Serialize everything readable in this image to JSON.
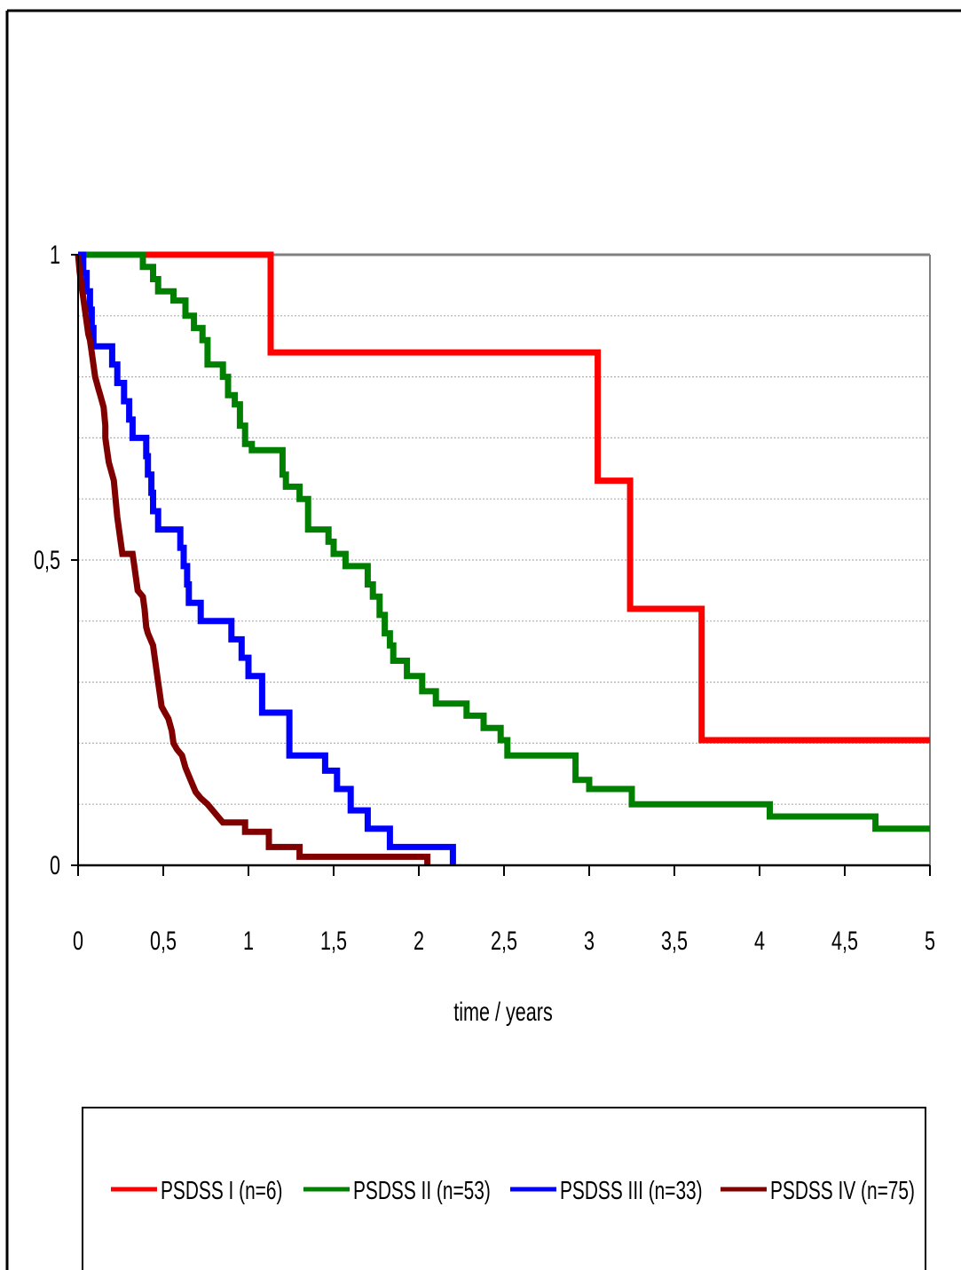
{
  "chart_data": {
    "type": "line",
    "step": true,
    "title": "",
    "xlabel": "time / years",
    "ylabel": "",
    "xlim": [
      0,
      5
    ],
    "ylim": [
      0,
      1
    ],
    "x_ticks": [
      "0",
      "0,5",
      "1",
      "1,5",
      "2",
      "2,5",
      "3",
      "3,5",
      "4",
      "4,5",
      "5"
    ],
    "x_tick_values": [
      0,
      0.5,
      1,
      1.5,
      2,
      2.5,
      3,
      3.5,
      4,
      4.5,
      5
    ],
    "y_ticks": [
      "0",
      "0,5",
      "1"
    ],
    "y_tick_values": [
      0,
      0.5,
      1
    ],
    "grid": "horizontal dotted, every 0.1",
    "legend_position": "bottom",
    "series": [
      {
        "name": "PSDSS I (n=6)",
        "color": "#ff0000",
        "points": [
          [
            0,
            1
          ],
          [
            1.13,
            1
          ],
          [
            1.13,
            0.84
          ],
          [
            3.05,
            0.84
          ],
          [
            3.05,
            0.63
          ],
          [
            3.24,
            0.63
          ],
          [
            3.24,
            0.42
          ],
          [
            3.66,
            0.42
          ],
          [
            3.66,
            0.205
          ],
          [
            5,
            0.205
          ]
        ]
      },
      {
        "name": "PSDSS II (n=53)",
        "color": "#008000",
        "points": [
          [
            0,
            1
          ],
          [
            0.38,
            1
          ],
          [
            0.38,
            0.98
          ],
          [
            0.44,
            0.98
          ],
          [
            0.44,
            0.96
          ],
          [
            0.47,
            0.96
          ],
          [
            0.47,
            0.94
          ],
          [
            0.56,
            0.94
          ],
          [
            0.56,
            0.925
          ],
          [
            0.63,
            0.925
          ],
          [
            0.63,
            0.9
          ],
          [
            0.68,
            0.9
          ],
          [
            0.68,
            0.88
          ],
          [
            0.73,
            0.88
          ],
          [
            0.73,
            0.86
          ],
          [
            0.76,
            0.86
          ],
          [
            0.76,
            0.82
          ],
          [
            0.85,
            0.82
          ],
          [
            0.85,
            0.8
          ],
          [
            0.88,
            0.8
          ],
          [
            0.88,
            0.77
          ],
          [
            0.92,
            0.77
          ],
          [
            0.92,
            0.755
          ],
          [
            0.95,
            0.755
          ],
          [
            0.95,
            0.72
          ],
          [
            0.98,
            0.72
          ],
          [
            0.98,
            0.69
          ],
          [
            1.02,
            0.69
          ],
          [
            1.02,
            0.68
          ],
          [
            1.2,
            0.68
          ],
          [
            1.2,
            0.64
          ],
          [
            1.22,
            0.64
          ],
          [
            1.22,
            0.62
          ],
          [
            1.3,
            0.62
          ],
          [
            1.3,
            0.6
          ],
          [
            1.35,
            0.6
          ],
          [
            1.35,
            0.55
          ],
          [
            1.47,
            0.55
          ],
          [
            1.47,
            0.53
          ],
          [
            1.5,
            0.53
          ],
          [
            1.5,
            0.51
          ],
          [
            1.57,
            0.51
          ],
          [
            1.57,
            0.49
          ],
          [
            1.7,
            0.49
          ],
          [
            1.7,
            0.46
          ],
          [
            1.73,
            0.46
          ],
          [
            1.73,
            0.44
          ],
          [
            1.77,
            0.44
          ],
          [
            1.77,
            0.41
          ],
          [
            1.8,
            0.41
          ],
          [
            1.8,
            0.38
          ],
          [
            1.83,
            0.38
          ],
          [
            1.83,
            0.36
          ],
          [
            1.85,
            0.36
          ],
          [
            1.85,
            0.335
          ],
          [
            1.93,
            0.335
          ],
          [
            1.93,
            0.31
          ],
          [
            2.02,
            0.31
          ],
          [
            2.02,
            0.285
          ],
          [
            2.1,
            0.285
          ],
          [
            2.1,
            0.265
          ],
          [
            2.28,
            0.265
          ],
          [
            2.28,
            0.245
          ],
          [
            2.38,
            0.245
          ],
          [
            2.38,
            0.225
          ],
          [
            2.48,
            0.225
          ],
          [
            2.48,
            0.205
          ],
          [
            2.52,
            0.205
          ],
          [
            2.52,
            0.18
          ],
          [
            2.92,
            0.18
          ],
          [
            2.92,
            0.14
          ],
          [
            3.0,
            0.14
          ],
          [
            3.0,
            0.125
          ],
          [
            3.25,
            0.125
          ],
          [
            3.25,
            0.1
          ],
          [
            4.06,
            0.1
          ],
          [
            4.06,
            0.08
          ],
          [
            4.68,
            0.08
          ],
          [
            4.68,
            0.06
          ],
          [
            5,
            0.06
          ]
        ]
      },
      {
        "name": "PSDSS III (n=33)",
        "color": "#0000ff",
        "points": [
          [
            0,
            1
          ],
          [
            0.03,
            1
          ],
          [
            0.03,
            0.97
          ],
          [
            0.05,
            0.97
          ],
          [
            0.05,
            0.94
          ],
          [
            0.07,
            0.94
          ],
          [
            0.07,
            0.91
          ],
          [
            0.08,
            0.91
          ],
          [
            0.08,
            0.88
          ],
          [
            0.09,
            0.88
          ],
          [
            0.09,
            0.85
          ],
          [
            0.2,
            0.85
          ],
          [
            0.2,
            0.82
          ],
          [
            0.23,
            0.82
          ],
          [
            0.23,
            0.79
          ],
          [
            0.27,
            0.79
          ],
          [
            0.27,
            0.76
          ],
          [
            0.3,
            0.76
          ],
          [
            0.3,
            0.73
          ],
          [
            0.32,
            0.73
          ],
          [
            0.32,
            0.7
          ],
          [
            0.4,
            0.7
          ],
          [
            0.4,
            0.67
          ],
          [
            0.41,
            0.67
          ],
          [
            0.41,
            0.64
          ],
          [
            0.43,
            0.64
          ],
          [
            0.43,
            0.61
          ],
          [
            0.44,
            0.61
          ],
          [
            0.44,
            0.58
          ],
          [
            0.47,
            0.58
          ],
          [
            0.47,
            0.55
          ],
          [
            0.6,
            0.55
          ],
          [
            0.6,
            0.52
          ],
          [
            0.62,
            0.52
          ],
          [
            0.62,
            0.49
          ],
          [
            0.64,
            0.49
          ],
          [
            0.64,
            0.46
          ],
          [
            0.65,
            0.46
          ],
          [
            0.65,
            0.43
          ],
          [
            0.72,
            0.43
          ],
          [
            0.72,
            0.4
          ],
          [
            0.9,
            0.4
          ],
          [
            0.9,
            0.37
          ],
          [
            0.96,
            0.37
          ],
          [
            0.96,
            0.34
          ],
          [
            1.0,
            0.34
          ],
          [
            1.0,
            0.31
          ],
          [
            1.08,
            0.31
          ],
          [
            1.08,
            0.25
          ],
          [
            1.24,
            0.25
          ],
          [
            1.24,
            0.18
          ],
          [
            1.45,
            0.18
          ],
          [
            1.45,
            0.155
          ],
          [
            1.52,
            0.155
          ],
          [
            1.52,
            0.125
          ],
          [
            1.6,
            0.125
          ],
          [
            1.6,
            0.09
          ],
          [
            1.7,
            0.09
          ],
          [
            1.7,
            0.06
          ],
          [
            1.83,
            0.06
          ],
          [
            1.83,
            0.03
          ],
          [
            2.2,
            0.03
          ],
          [
            2.2,
            0
          ]
        ]
      },
      {
        "name": "PSDSS IV (n=75)",
        "color": "#800000",
        "points": [
          [
            0,
            1
          ],
          [
            0.01,
            0.97
          ],
          [
            0.02,
            0.95
          ],
          [
            0.03,
            0.93
          ],
          [
            0.04,
            0.91
          ],
          [
            0.05,
            0.89
          ],
          [
            0.06,
            0.87
          ],
          [
            0.07,
            0.86
          ],
          [
            0.08,
            0.84
          ],
          [
            0.09,
            0.82
          ],
          [
            0.1,
            0.8
          ],
          [
            0.11,
            0.79
          ],
          [
            0.12,
            0.78
          ],
          [
            0.13,
            0.77
          ],
          [
            0.14,
            0.76
          ],
          [
            0.15,
            0.75
          ],
          [
            0.16,
            0.72
          ],
          [
            0.16,
            0.7
          ],
          [
            0.17,
            0.68
          ],
          [
            0.18,
            0.66
          ],
          [
            0.19,
            0.65
          ],
          [
            0.2,
            0.64
          ],
          [
            0.21,
            0.63
          ],
          [
            0.22,
            0.6
          ],
          [
            0.23,
            0.57
          ],
          [
            0.24,
            0.55
          ],
          [
            0.25,
            0.53
          ],
          [
            0.26,
            0.51
          ],
          [
            0.32,
            0.51
          ],
          [
            0.33,
            0.49
          ],
          [
            0.34,
            0.47
          ],
          [
            0.35,
            0.45
          ],
          [
            0.38,
            0.44
          ],
          [
            0.39,
            0.42
          ],
          [
            0.4,
            0.39
          ],
          [
            0.41,
            0.38
          ],
          [
            0.44,
            0.36
          ],
          [
            0.45,
            0.34
          ],
          [
            0.46,
            0.32
          ],
          [
            0.47,
            0.3
          ],
          [
            0.48,
            0.28
          ],
          [
            0.49,
            0.26
          ],
          [
            0.51,
            0.25
          ],
          [
            0.53,
            0.24
          ],
          [
            0.55,
            0.22
          ],
          [
            0.56,
            0.2
          ],
          [
            0.58,
            0.19
          ],
          [
            0.61,
            0.18
          ],
          [
            0.63,
            0.16
          ],
          [
            0.66,
            0.14
          ],
          [
            0.69,
            0.12
          ],
          [
            0.72,
            0.11
          ],
          [
            0.76,
            0.1
          ],
          [
            0.79,
            0.09
          ],
          [
            0.82,
            0.08
          ],
          [
            0.85,
            0.07
          ],
          [
            0.98,
            0.07
          ],
          [
            0.98,
            0.055
          ],
          [
            1.12,
            0.055
          ],
          [
            1.12,
            0.03
          ],
          [
            1.3,
            0.03
          ],
          [
            1.3,
            0.014
          ],
          [
            2.05,
            0.014
          ],
          [
            2.05,
            0
          ]
        ]
      }
    ]
  }
}
